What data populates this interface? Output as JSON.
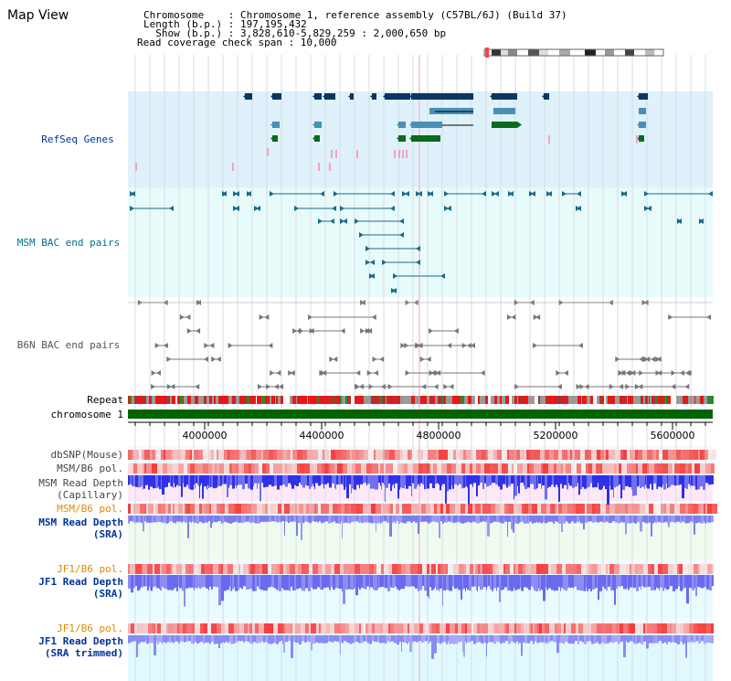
{
  "title": "Map View",
  "info": {
    "chromosome": "Chromosome    : Chromosome 1, reference assembly (C57BL/6J) (Build 37)",
    "length": "Length (b.p.) : 197,195,432",
    "show": "  Show (b.p.) : 3,828,610-5,829,259 : 2,000,650 bp",
    "coverage": "Read coverage check span : 10,000"
  },
  "track_labels": {
    "refseq": "RefSeq Genes",
    "msm_bac": "MSM BAC end pairs",
    "b6n_bac": "B6N BAC end pairs",
    "repeat": "Repeat",
    "chromosome": "chromosome 1",
    "dbsnp": "dbSNP(Mouse)",
    "msm_b6_pol_1": "MSM/B6 pol.",
    "msm_read_depth_cap_1": "MSM Read Depth",
    "msm_read_depth_cap_2": "(Capillary)",
    "msm_b6_pol_2": "MSM/B6 pol.",
    "msm_read_depth_sra_1": "MSM Read Depth",
    "msm_read_depth_sra_2": "(SRA)",
    "jf1_b6_pol_1": "JF1/B6 pol.",
    "jf1_read_depth_sra_1": "JF1 Read Depth",
    "jf1_read_depth_sra_2": "(SRA)",
    "jf1_b6_pol_2": "JF1/B6 pol.",
    "jf1_read_depth_trim_1": "JF1 Read Depth",
    "jf1_read_depth_trim_2": "(SRA trimmed)"
  },
  "axis_ticks": [
    "4000000",
    "4400000",
    "4800000",
    "5200000",
    "5600000"
  ],
  "colors": {
    "refseq_bg": "#dff1fa",
    "msm_bg": "#e8fbfb",
    "gene_navy": "#0c3563",
    "gene_steel": "#4a8fb5",
    "gene_green": "#0a6b1e",
    "msm_pair": "#1a6a8a",
    "b6n_pair": "#777777",
    "chrom_green": "#006400",
    "repeat_red": "#e81818",
    "label_blue": "#00339a",
    "label_orange": "#e08a00",
    "label_teal": "#007088",
    "depth_blue": "#3b3bf0",
    "depth_light": "#8c8cf5"
  }
}
